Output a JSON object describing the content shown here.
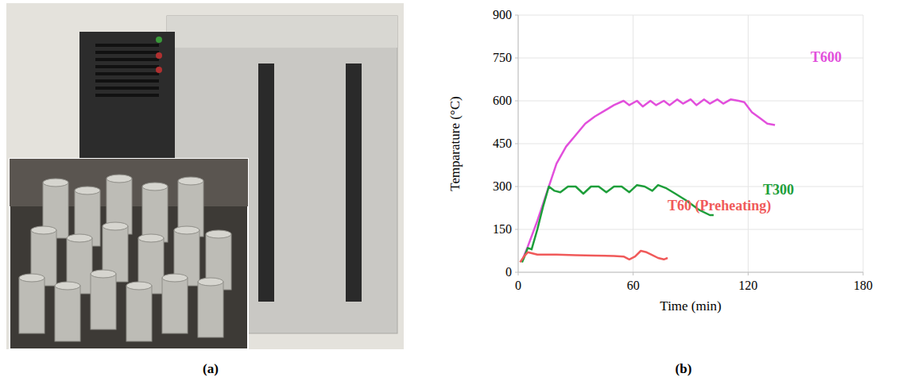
{
  "panel_labels": [
    "(a)",
    "(b)"
  ],
  "chart_data": {
    "type": "line",
    "x_label": "Time (min)",
    "y_label": "Temparature (°C)",
    "xlim": [
      0,
      180
    ],
    "xticks": [
      0,
      60,
      120,
      180
    ],
    "ylim": [
      0,
      900
    ],
    "yticks": [
      0,
      150,
      300,
      450,
      600,
      750,
      900
    ],
    "grid": true,
    "series": [
      {
        "name": "T600",
        "color": "#e24fdc",
        "x": [
          2,
          5,
          10,
          15,
          20,
          25,
          30,
          35,
          40,
          45,
          50,
          55,
          58,
          62,
          65,
          69,
          72,
          76,
          79,
          83,
          86,
          90,
          93,
          97,
          100,
          104,
          107,
          111,
          115,
          118,
          122,
          126,
          130,
          134
        ],
        "values": [
          40,
          90,
          180,
          280,
          380,
          440,
          480,
          520,
          545,
          565,
          585,
          600,
          585,
          600,
          580,
          600,
          585,
          600,
          585,
          605,
          590,
          605,
          585,
          605,
          590,
          605,
          590,
          605,
          600,
          595,
          560,
          540,
          520,
          515
        ]
      },
      {
        "name": "T300",
        "color": "#1e9e3a",
        "x": [
          2,
          3,
          5,
          7,
          10,
          13,
          16,
          19,
          22,
          26,
          30,
          34,
          38,
          42,
          46,
          50,
          54,
          58,
          62,
          66,
          70,
          73,
          77,
          82,
          88,
          94,
          100,
          102
        ],
        "values": [
          35,
          50,
          85,
          80,
          150,
          230,
          300,
          285,
          280,
          300,
          300,
          275,
          300,
          300,
          280,
          300,
          300,
          280,
          305,
          300,
          285,
          305,
          295,
          275,
          250,
          220,
          200,
          200
        ]
      },
      {
        "name": "T60 (Preheating)",
        "color": "#f05a5a",
        "x": [
          1,
          3,
          5,
          10,
          20,
          30,
          40,
          50,
          55,
          58,
          61,
          64,
          67,
          70,
          73,
          76,
          78
        ],
        "values": [
          35,
          55,
          70,
          62,
          62,
          60,
          58,
          57,
          55,
          45,
          55,
          75,
          70,
          60,
          50,
          45,
          50
        ]
      }
    ]
  }
}
